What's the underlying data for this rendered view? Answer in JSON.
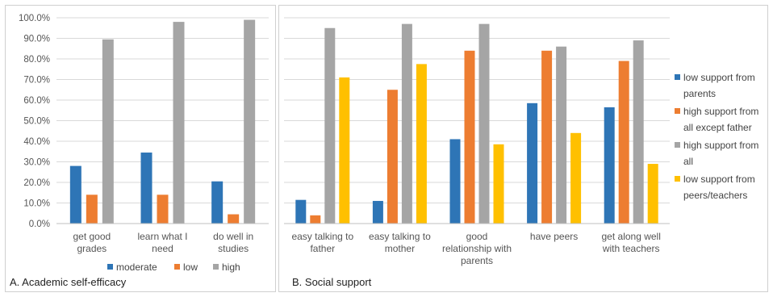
{
  "chart_data": [
    {
      "type": "bar",
      "caption": "A. Academic self-efficacy",
      "categories": [
        [
          "get good",
          "grades"
        ],
        [
          "learn what I",
          "need"
        ],
        [
          "do well in",
          "studies"
        ]
      ],
      "ylim": [
        0,
        100
      ],
      "yticks": [
        "0.0%",
        "10.0%",
        "20.0%",
        "30.0%",
        "40.0%",
        "50.0%",
        "60.0%",
        "70.0%",
        "80.0%",
        "90.0%",
        "100.0%"
      ],
      "legend_position": "bottom",
      "series": [
        {
          "name": "moderate",
          "color": "#2e75b6",
          "values": [
            28,
            34.5,
            20.5
          ]
        },
        {
          "name": "low",
          "color": "#ed7d31",
          "values": [
            14,
            14,
            4.5
          ]
        },
        {
          "name": "high",
          "color": "#a5a5a5",
          "values": [
            89.5,
            98,
            99
          ]
        }
      ]
    },
    {
      "type": "bar",
      "caption": "B. Social support",
      "categories": [
        [
          "easy talking to",
          "father"
        ],
        [
          "easy talking to",
          "mother"
        ],
        [
          "good",
          "relationship with",
          "parents"
        ],
        [
          "have peers"
        ],
        [
          "get along well",
          "with teachers"
        ]
      ],
      "ylim": [
        0,
        100
      ],
      "legend_position": "right",
      "series": [
        {
          "name": "low support from\nparents",
          "color": "#2e75b6",
          "values": [
            11.5,
            11,
            41,
            58.5,
            56.5
          ]
        },
        {
          "name": "high support from\nall except father",
          "color": "#ed7d31",
          "values": [
            4,
            65,
            84,
            84,
            79
          ]
        },
        {
          "name": "high support from\nall",
          "color": "#a5a5a5",
          "values": [
            95,
            97,
            97,
            86,
            89
          ]
        },
        {
          "name": "low support from\npeers/teachers",
          "color": "#ffc000",
          "values": [
            71,
            77.5,
            38.5,
            44,
            29
          ]
        }
      ]
    }
  ]
}
